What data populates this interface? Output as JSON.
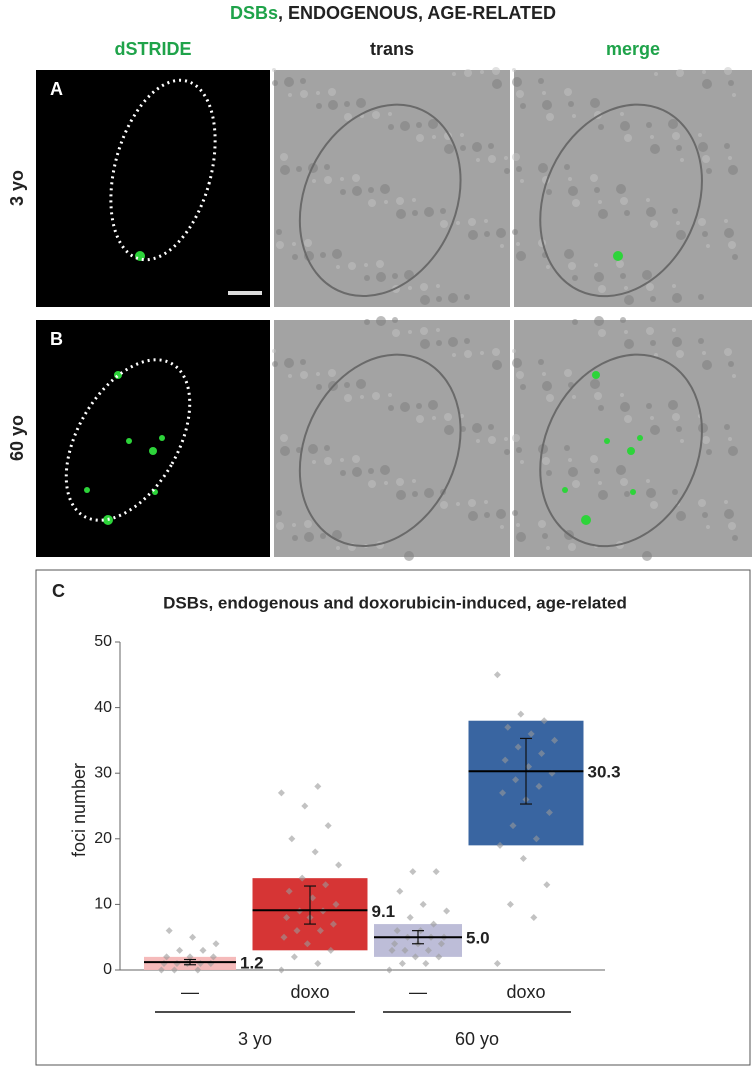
{
  "figure": {
    "title_parts": [
      "DSBs",
      ", ENDOGENOUS, AGE-RELATED"
    ],
    "column_headers": [
      "dSTRIDE",
      "trans",
      "merge"
    ],
    "rows": [
      {
        "panel": "A",
        "label": "3 yo"
      },
      {
        "panel": "B",
        "label": "60 yo"
      }
    ]
  },
  "chart_data": {
    "type": "box",
    "panel": "C",
    "title": "DSBs, endogenous and doxorubicin-induced, age-related",
    "y_label": "foci number",
    "ylim": [
      0,
      50
    ],
    "yticks": [
      0,
      10,
      20,
      30,
      40,
      50
    ],
    "groups": [
      {
        "name": "3 yo",
        "boxes": [
          {
            "label": "—",
            "color": "#f4b6b6",
            "q1": 0,
            "q3": 2,
            "mean": 1.2,
            "err_low": 0.8,
            "err_high": 1.6,
            "points": [
              0,
              0,
              0,
              1,
              1,
              1,
              1,
              1,
              2,
              2,
              2,
              3,
              3,
              4,
              5,
              6
            ]
          },
          {
            "label": "doxo",
            "color": "#d42a2a",
            "q1": 3,
            "q3": 14,
            "mean": 9.1,
            "err_low": 7,
            "err_high": 12.8,
            "points": [
              0,
              1,
              2,
              3,
              4,
              5,
              6,
              6,
              7,
              8,
              8,
              9,
              9,
              10,
              11,
              12,
              13,
              14,
              16,
              18,
              20,
              22,
              25,
              27,
              28
            ]
          }
        ]
      },
      {
        "name": "60 yo",
        "boxes": [
          {
            "label": "—",
            "color": "#b9b9d6",
            "q1": 2,
            "q3": 7,
            "mean": 5.0,
            "value_label": "5.0",
            "err_low": 4,
            "err_high": 6,
            "points": [
              0,
              1,
              1,
              2,
              2,
              3,
              3,
              3,
              4,
              4,
              4,
              5,
              5,
              5,
              6,
              6,
              7,
              8,
              9,
              10,
              12,
              15,
              15
            ]
          },
          {
            "label": "doxo",
            "color": "#2e5d9c",
            "q1": 19,
            "q3": 38,
            "mean": 30.3,
            "err_low": 25.3,
            "err_high": 35.3,
            "points": [
              1,
              8,
              10,
              13,
              17,
              19,
              20,
              22,
              24,
              26,
              27,
              28,
              29,
              30,
              31,
              32,
              33,
              34,
              35,
              36,
              37,
              38,
              39,
              45
            ]
          }
        ]
      }
    ]
  }
}
